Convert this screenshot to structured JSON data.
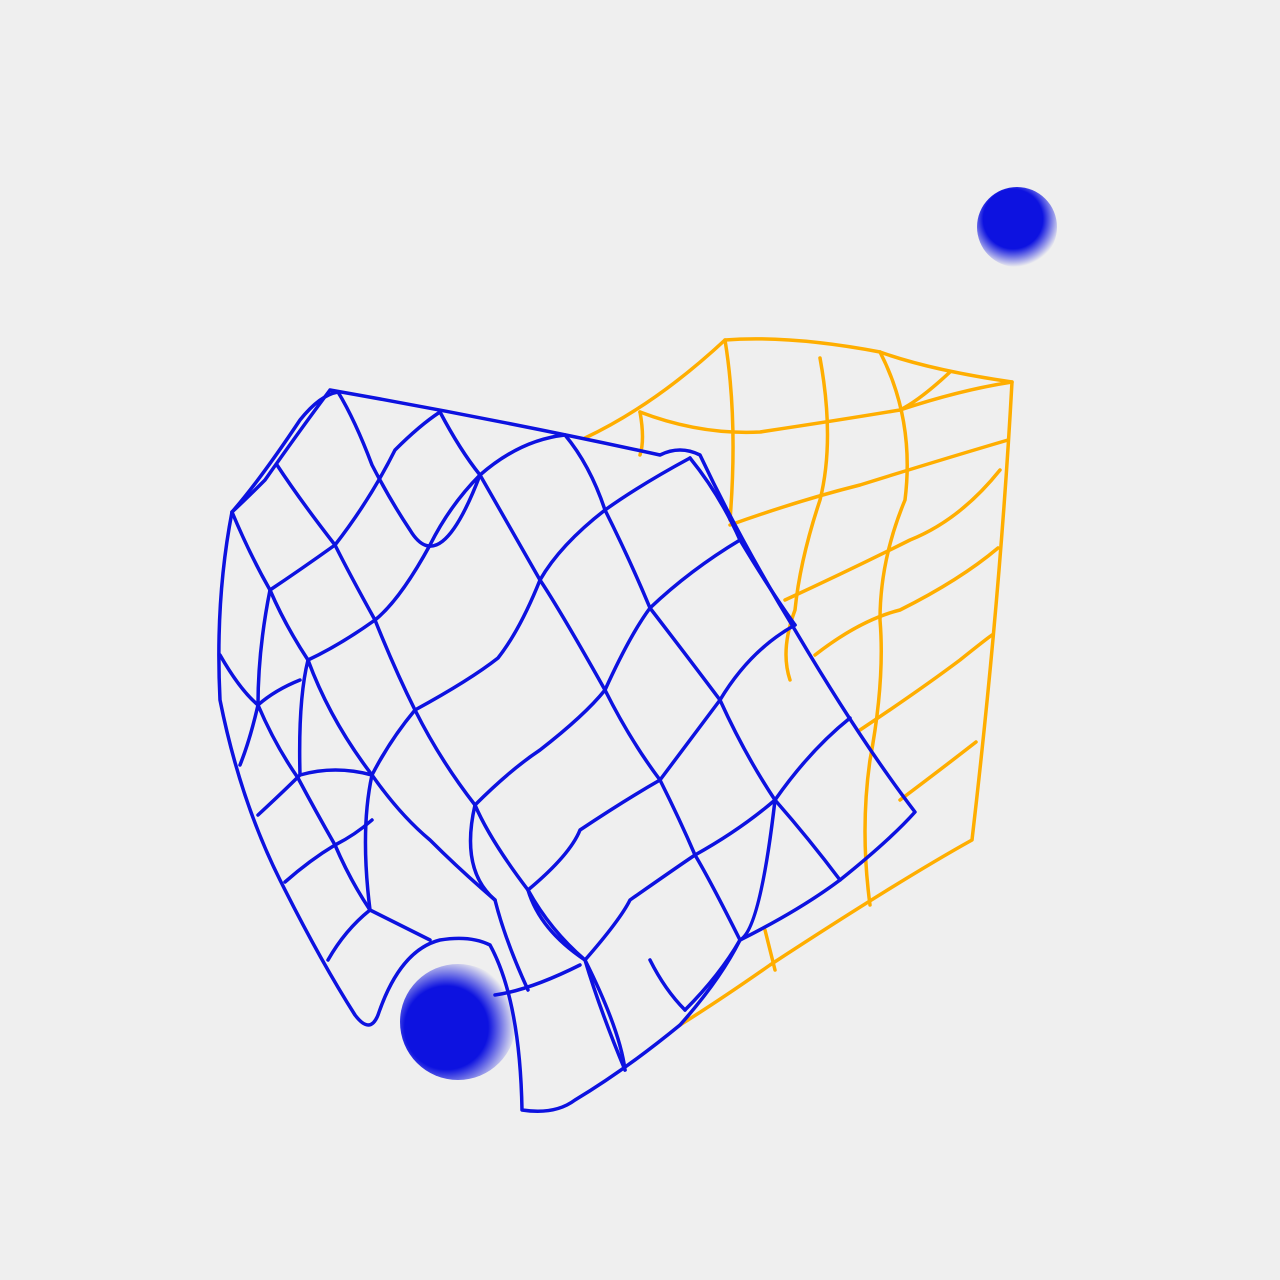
{
  "colors": {
    "background": "#efefef",
    "blue": "#0d12e0",
    "yellow": "#ffae00"
  }
}
